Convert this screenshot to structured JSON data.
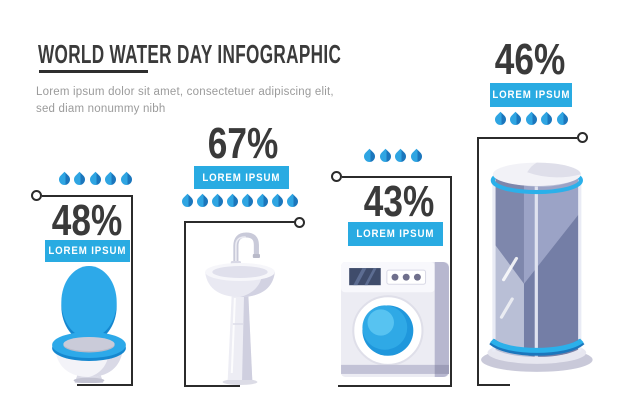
{
  "header": {
    "title": "WORLD WATER DAY INFOGRAPHIC",
    "description_line1": "Lorem ipsum dolor sit amet, consectetuer adipiscing elit,",
    "description_line2": "sed diam nonummy nibh"
  },
  "colors": {
    "accent_blue": "#29abe2",
    "drop_blue_light": "#2fa5e2",
    "drop_blue_dark": "#1b76bc",
    "text_dark": "#3b3b3b",
    "text_gray": "#9b9b9b",
    "frame_black": "#2b2b2b"
  },
  "items": [
    {
      "id": "toilet",
      "percent": "48%",
      "label": "LOREM IPSUM",
      "drops": 5
    },
    {
      "id": "washbasin",
      "percent": "67%",
      "label": "LOREM IPSUM",
      "drops": 8
    },
    {
      "id": "washing-machine",
      "percent": "43%",
      "label": "LOREM IPSUM",
      "drops": 4
    },
    {
      "id": "shower",
      "percent": "46%",
      "label": "LOREM IPSUM",
      "drops": 5
    }
  ],
  "chart_data": {
    "type": "pictogram",
    "title": "WORLD WATER DAY INFOGRAPHIC",
    "subtitle": "Lorem ipsum dolor sit amet, consectetuer adipiscing elit, sed diam nonummy nibh",
    "categories": [
      "toilet",
      "washbasin",
      "washing-machine",
      "shower"
    ],
    "values_percent": [
      48,
      67,
      43,
      46
    ],
    "drop_icon_counts": [
      5,
      8,
      4,
      5
    ],
    "labels": [
      "LOREM IPSUM",
      "LOREM IPSUM",
      "LOREM IPSUM",
      "LOREM IPSUM"
    ],
    "unit": "water-drop icons"
  }
}
